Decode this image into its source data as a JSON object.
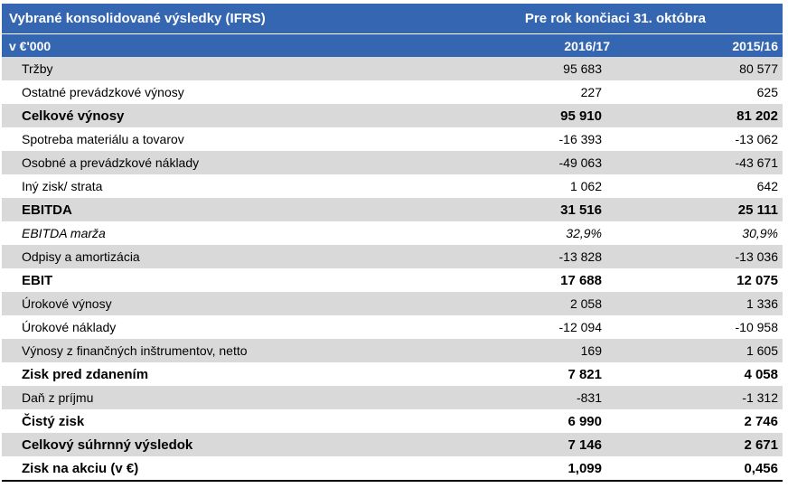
{
  "table": {
    "title": "Vybrané konsolidované výsledky (IFRS)",
    "period_header": "Pre rok končiaci 31. októbra",
    "unit_label": "v €'000",
    "col1": "2016/17",
    "col2": "2015/16",
    "rows": [
      {
        "label": "Tržby",
        "v1": "95 683",
        "v2": "80 577"
      },
      {
        "label": "Ostatné prevádzkové výnosy",
        "v1": "227",
        "v2": "625"
      },
      {
        "label": "Celkové výnosy",
        "v1": "95 910",
        "v2": "81 202"
      },
      {
        "label": "Spotreba materiálu a tovarov",
        "v1": "-16 393",
        "v2": "-13 062"
      },
      {
        "label": "Osobné a prevádzkové náklady",
        "v1": "-49 063",
        "v2": "-43 671"
      },
      {
        "label": "Iný zisk/ strata",
        "v1": "1 062",
        "v2": "642"
      },
      {
        "label": "EBITDA",
        "v1": "31 516",
        "v2": "25 111"
      },
      {
        "label": "EBITDA marža",
        "v1": "32,9%",
        "v2": "30,9%"
      },
      {
        "label": "Odpisy a amortizácia",
        "v1": "-13 828",
        "v2": "-13 036"
      },
      {
        "label": "EBIT",
        "v1": "17 688",
        "v2": "12 075"
      },
      {
        "label": "Úrokové výnosy",
        "v1": "2 058",
        "v2": "1 336"
      },
      {
        "label": "Úrokové náklady",
        "v1": "-12 094",
        "v2": "-10 958"
      },
      {
        "label": "Výnosy z finančných inštrumentov, netto",
        "v1": "169",
        "v2": "1 605"
      },
      {
        "label": "Zisk pred zdanením",
        "v1": "7 821",
        "v2": "4 058"
      },
      {
        "label": "Daň z príjmu",
        "v1": "-831",
        "v2": "-1 312"
      },
      {
        "label": "Čistý zisk",
        "v1": "6 990",
        "v2": "2 746"
      },
      {
        "label": "Celkový súhrnný výsledok",
        "v1": "7 146",
        "v2": "2 671"
      },
      {
        "label": "Zisk na akciu (v €)",
        "v1": "1,099",
        "v2": "0,456"
      }
    ]
  }
}
